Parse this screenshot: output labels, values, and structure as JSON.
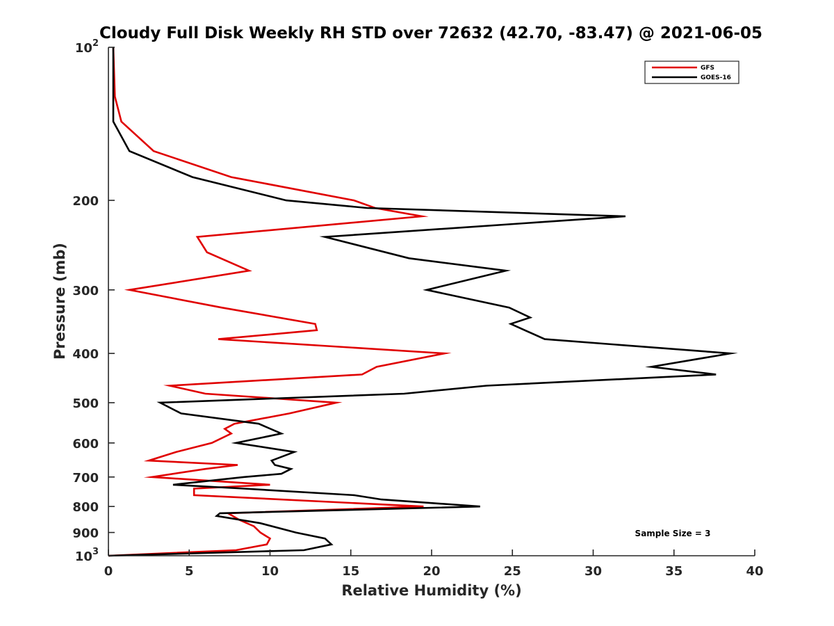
{
  "chart_data": {
    "type": "line",
    "orientation": "vertical-profile",
    "title": "Cloudy Full Disk Weekly RH STD over 72632 (42.70, -83.47) @ 2021-06-05",
    "xlabel": "Relative Humidity (%)",
    "ylabel": "Pressure (mb)",
    "xlim": [
      0,
      40
    ],
    "ylim": [
      100,
      1000
    ],
    "y_scale": "log",
    "y_reversed": true,
    "grid": false,
    "legend_placement": "top-right",
    "x_ticks": [
      "0",
      "5",
      "10",
      "15",
      "20",
      "25",
      "30",
      "35",
      "40"
    ],
    "y_ticks": [
      {
        "value": 100,
        "base": "10",
        "exp": "2"
      },
      {
        "value": 200,
        "label": "200"
      },
      {
        "value": 300,
        "label": "300"
      },
      {
        "value": 400,
        "label": "400"
      },
      {
        "value": 500,
        "label": "500"
      },
      {
        "value": 600,
        "label": "600"
      },
      {
        "value": 700,
        "label": "700"
      },
      {
        "value": 800,
        "label": "800"
      },
      {
        "value": 900,
        "label": "900"
      },
      {
        "value": 1000,
        "base": "10",
        "exp": "3"
      }
    ],
    "annotation": "Sample Size = 3",
    "series": [
      {
        "name": "GFS",
        "color": "#e00000",
        "points": [
          [
            0.3,
            100
          ],
          [
            0.4,
            125
          ],
          [
            0.8,
            140
          ],
          [
            2.8,
            160
          ],
          [
            7.6,
            180
          ],
          [
            15.2,
            200
          ],
          [
            16.5,
            207
          ],
          [
            19.4,
            215
          ],
          [
            5.5,
            236
          ],
          [
            6.1,
            253
          ],
          [
            8.7,
            275
          ],
          [
            1.3,
            300
          ],
          [
            7.0,
            325
          ],
          [
            12.8,
            350
          ],
          [
            12.9,
            360
          ],
          [
            6.8,
            375
          ],
          [
            20.8,
            400
          ],
          [
            16.6,
            425
          ],
          [
            15.7,
            440
          ],
          [
            3.8,
            463
          ],
          [
            6.0,
            480
          ],
          [
            14.1,
            500
          ],
          [
            11.2,
            525
          ],
          [
            7.8,
            550
          ],
          [
            7.2,
            563
          ],
          [
            7.6,
            575
          ],
          [
            6.4,
            600
          ],
          [
            4.2,
            625
          ],
          [
            2.5,
            650
          ],
          [
            8.0,
            663
          ],
          [
            6.0,
            675
          ],
          [
            2.7,
            700
          ],
          [
            10.0,
            725
          ],
          [
            5.3,
            738
          ],
          [
            5.3,
            760
          ],
          [
            19.5,
            800
          ],
          [
            7.4,
            825
          ],
          [
            8.1,
            850
          ],
          [
            9.0,
            875
          ],
          [
            9.4,
            900
          ],
          [
            10.0,
            925
          ],
          [
            9.8,
            950
          ],
          [
            7.9,
            975
          ],
          [
            0.0,
            1000
          ]
        ]
      },
      {
        "name": "GOES-16",
        "color": "#000000",
        "points": [
          [
            0.3,
            100
          ],
          [
            0.3,
            140
          ],
          [
            1.3,
            160
          ],
          [
            5.2,
            180
          ],
          [
            11.0,
            200
          ],
          [
            16.0,
            207
          ],
          [
            32.0,
            215
          ],
          [
            13.4,
            236
          ],
          [
            18.6,
            260
          ],
          [
            24.6,
            275
          ],
          [
            19.7,
            300
          ],
          [
            24.8,
            325
          ],
          [
            26.1,
            340
          ],
          [
            24.9,
            350
          ],
          [
            27.0,
            375
          ],
          [
            38.5,
            400
          ],
          [
            33.6,
            425
          ],
          [
            37.6,
            440
          ],
          [
            23.4,
            463
          ],
          [
            18.3,
            480
          ],
          [
            3.2,
            500
          ],
          [
            4.5,
            525
          ],
          [
            9.3,
            550
          ],
          [
            10.7,
            575
          ],
          [
            7.9,
            600
          ],
          [
            11.5,
            625
          ],
          [
            10.1,
            650
          ],
          [
            10.3,
            663
          ],
          [
            11.3,
            675
          ],
          [
            10.7,
            690
          ],
          [
            8.4,
            700
          ],
          [
            4.0,
            725
          ],
          [
            8.4,
            738
          ],
          [
            15.2,
            760
          ],
          [
            16.9,
            775
          ],
          [
            23.0,
            800
          ],
          [
            6.9,
            825
          ],
          [
            6.7,
            835
          ],
          [
            9.4,
            863
          ],
          [
            11.6,
            900
          ],
          [
            13.4,
            925
          ],
          [
            13.8,
            950
          ],
          [
            12.1,
            975
          ],
          [
            0.0,
            1000
          ]
        ]
      }
    ]
  }
}
